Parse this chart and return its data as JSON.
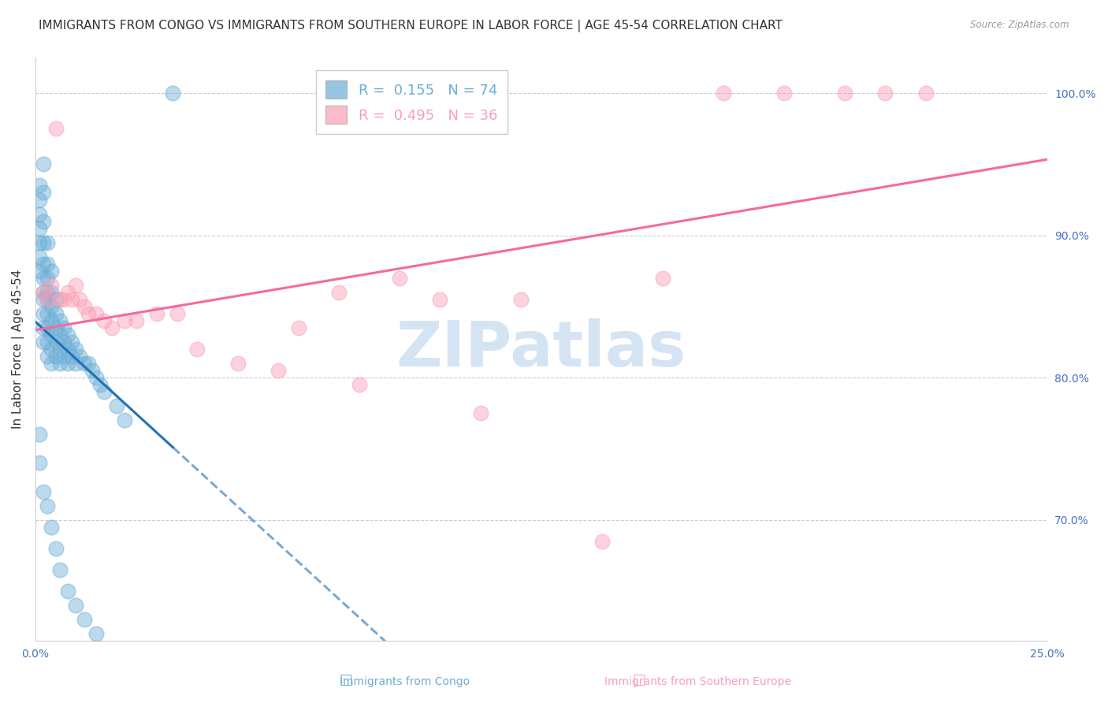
{
  "title": "IMMIGRANTS FROM CONGO VS IMMIGRANTS FROM SOUTHERN EUROPE IN LABOR FORCE | AGE 45-54 CORRELATION CHART",
  "source": "Source: ZipAtlas.com",
  "ylabel": "In Labor Force | Age 45-54",
  "xlim": [
    0.0,
    0.25
  ],
  "ylim": [
    0.615,
    1.025
  ],
  "yticks_right": [
    0.7,
    0.8,
    0.9,
    1.0
  ],
  "ytick_right_labels": [
    "70.0%",
    "80.0%",
    "90.0%",
    "100.0%"
  ],
  "xtick_vals": [
    0.0,
    0.05,
    0.1,
    0.15,
    0.2,
    0.25
  ],
  "xtick_labels": [
    "0.0%",
    "",
    "",
    "",
    "",
    "25.0%"
  ],
  "legend_line1": "R =  0.155   N = 74",
  "legend_line2": "R =  0.495   N = 36",
  "blue_color": "#6baed6",
  "pink_color": "#fa9fb5",
  "blue_line_color": "#2171b5",
  "pink_line_color": "#f768a1",
  "watermark": "ZIPatlas",
  "watermark_color": "#c6dbef",
  "background_color": "#ffffff",
  "title_fontsize": 11,
  "tick_fontsize": 10,
  "legend_fontsize": 13,
  "bottom_legend_label1": "Immigrants from Congo",
  "bottom_legend_label2": "Immigrants from Southern Europe",
  "congo_x": [
    0.001,
    0.001,
    0.001,
    0.001,
    0.001,
    0.001,
    0.001,
    0.002,
    0.002,
    0.002,
    0.002,
    0.002,
    0.002,
    0.002,
    0.002,
    0.002,
    0.002,
    0.002,
    0.003,
    0.003,
    0.003,
    0.003,
    0.003,
    0.003,
    0.003,
    0.003,
    0.003,
    0.004,
    0.004,
    0.004,
    0.004,
    0.004,
    0.004,
    0.004,
    0.005,
    0.005,
    0.005,
    0.005,
    0.005,
    0.006,
    0.006,
    0.006,
    0.006,
    0.007,
    0.007,
    0.007,
    0.008,
    0.008,
    0.008,
    0.009,
    0.009,
    0.01,
    0.01,
    0.011,
    0.012,
    0.013,
    0.014,
    0.015,
    0.016,
    0.017,
    0.02,
    0.022,
    0.001,
    0.001,
    0.002,
    0.003,
    0.004,
    0.005,
    0.006,
    0.008,
    0.01,
    0.012,
    0.015,
    0.034
  ],
  "congo_y": [
    0.935,
    0.925,
    0.915,
    0.905,
    0.895,
    0.885,
    0.875,
    0.95,
    0.93,
    0.91,
    0.895,
    0.88,
    0.87,
    0.86,
    0.855,
    0.845,
    0.835,
    0.825,
    0.895,
    0.88,
    0.87,
    0.86,
    0.855,
    0.845,
    0.835,
    0.825,
    0.815,
    0.875,
    0.86,
    0.85,
    0.84,
    0.83,
    0.82,
    0.81,
    0.855,
    0.845,
    0.835,
    0.825,
    0.815,
    0.84,
    0.83,
    0.82,
    0.81,
    0.835,
    0.825,
    0.815,
    0.83,
    0.82,
    0.81,
    0.825,
    0.815,
    0.82,
    0.81,
    0.815,
    0.81,
    0.81,
    0.805,
    0.8,
    0.795,
    0.79,
    0.78,
    0.77,
    0.76,
    0.74,
    0.72,
    0.71,
    0.695,
    0.68,
    0.665,
    0.65,
    0.64,
    0.63,
    0.62,
    1.0
  ],
  "se_x": [
    0.002,
    0.003,
    0.004,
    0.005,
    0.006,
    0.007,
    0.008,
    0.009,
    0.01,
    0.011,
    0.012,
    0.013,
    0.015,
    0.017,
    0.019,
    0.022,
    0.025,
    0.03,
    0.035,
    0.04,
    0.05,
    0.06,
    0.065,
    0.075,
    0.08,
    0.09,
    0.1,
    0.11,
    0.12,
    0.14,
    0.155,
    0.17,
    0.185,
    0.2,
    0.21,
    0.22
  ],
  "se_y": [
    0.86,
    0.855,
    0.865,
    0.975,
    0.855,
    0.855,
    0.86,
    0.855,
    0.865,
    0.855,
    0.85,
    0.845,
    0.845,
    0.84,
    0.835,
    0.84,
    0.84,
    0.845,
    0.845,
    0.82,
    0.81,
    0.805,
    0.835,
    0.86,
    0.795,
    0.87,
    0.855,
    0.775,
    0.855,
    0.685,
    0.87,
    1.0,
    1.0,
    1.0,
    1.0,
    1.0
  ]
}
